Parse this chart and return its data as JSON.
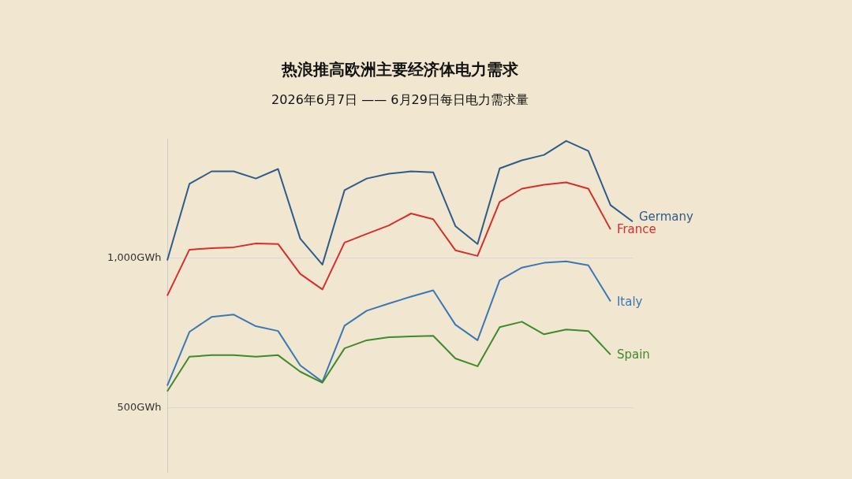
{
  "chart_data": {
    "type": "line",
    "title": "热浪推高欧洲主要经济体电力需求",
    "subtitle": "2026年6月7日  ——  6月29日每日电力需求量",
    "categories": [
      null,
      null,
      null,
      null,
      null,
      null,
      null,
      null,
      null,
      null,
      null,
      null,
      null,
      null,
      null,
      null,
      null,
      null,
      null,
      null,
      null,
      null
    ],
    "series": [
      {
        "name": "Germany",
        "color": "#2e5c8a",
        "values": [
          990,
          1246,
          1288,
          1288,
          1264,
          1296,
          1063,
          976,
          1225,
          1264,
          1280,
          1288,
          1285,
          1105,
          1045,
          1298,
          1325,
          1343,
          1390,
          1356,
          1175,
          1120
        ]
      },
      {
        "name": "France",
        "color": "#d62d2d",
        "values": [
          872,
          1026,
          1031,
          1034,
          1047,
          1045,
          945,
          893,
          1050,
          1079,
          1107,
          1147,
          1128,
          1024,
          1005,
          1186,
          1230,
          1243,
          1251,
          1230,
          1094,
          null
        ]
      },
      {
        "name": "Italy",
        "color": "#3a78b5",
        "values": [
          571,
          751,
          801,
          809,
          770,
          754,
          639,
          584,
          772,
          822,
          846,
          869,
          890,
          775,
          723,
          924,
          966,
          982,
          987,
          974,
          853,
          null
        ]
      },
      {
        "name": "Spain",
        "color": "#3f8a2a",
        "values": [
          552,
          668,
          673,
          673,
          668,
          673,
          618,
          581,
          696,
          723,
          733,
          736,
          738,
          662,
          636,
          767,
          785,
          743,
          759,
          754,
          675,
          null
        ]
      }
    ],
    "ylim": [
      280,
      1400
    ],
    "yticks": [
      {
        "value": 500,
        "label": "500GWh"
      },
      {
        "value": 1000,
        "label": "1,000GWh"
      }
    ],
    "grid": "y",
    "legend": false,
    "tick_labels": "y",
    "marker": "none",
    "line_style": "solid"
  }
}
